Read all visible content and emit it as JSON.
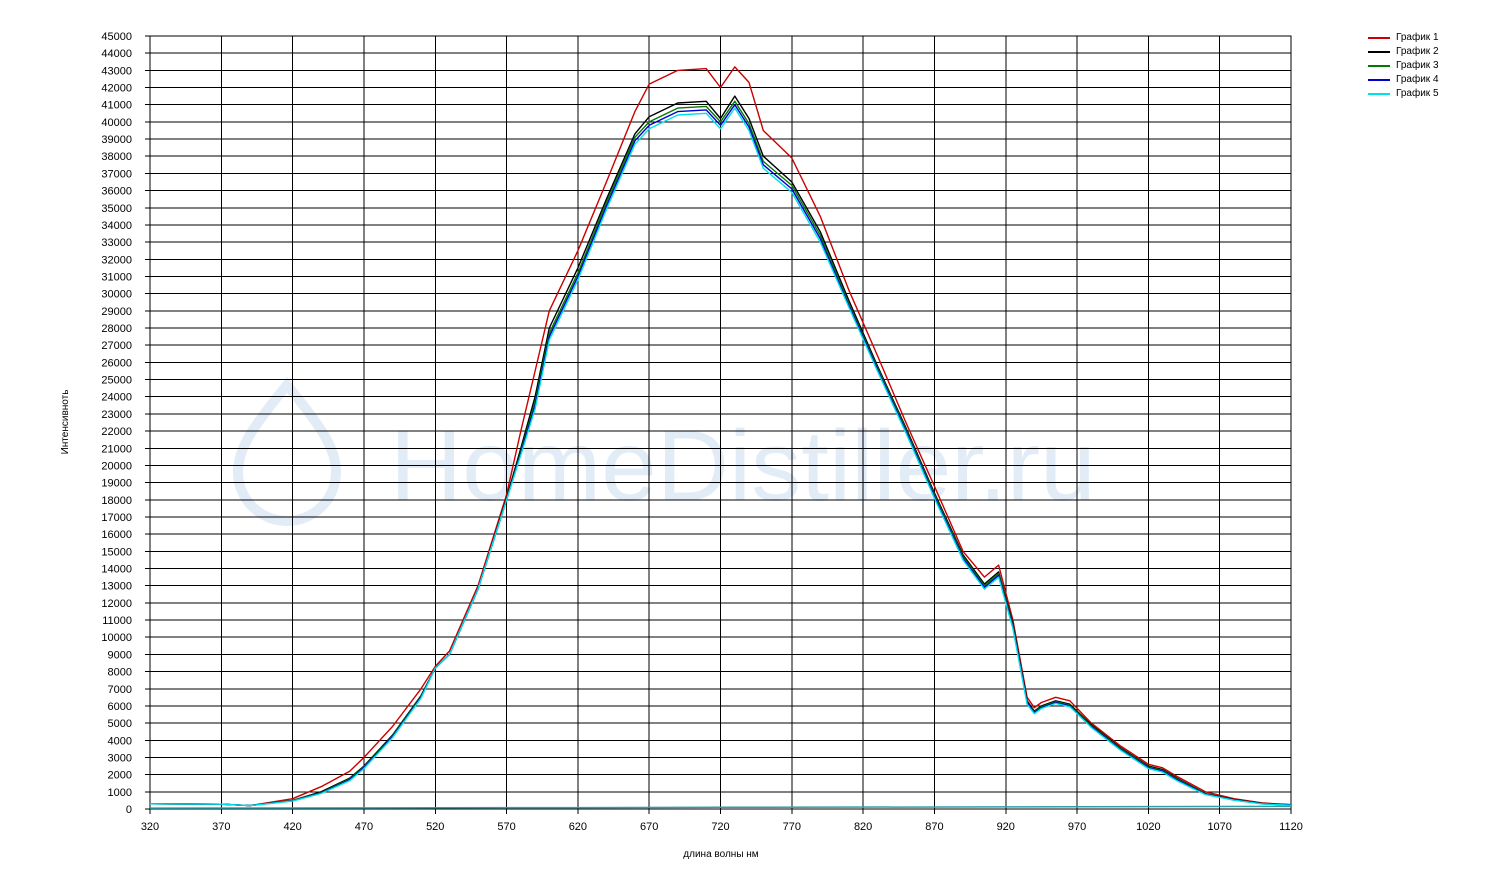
{
  "chart_data": {
    "type": "line",
    "title": "",
    "xlabel": "длина волны нм",
    "ylabel": "Интенсивноть",
    "watermark": "HomeDistiller.ru",
    "xlim": [
      320,
      1120
    ],
    "ylim": [
      0,
      45000
    ],
    "x_ticks": [
      "320",
      "370",
      "420",
      "470",
      "520",
      "570",
      "620",
      "670",
      "720",
      "770",
      "820",
      "870",
      "920",
      "970",
      "1020",
      "1070",
      "1120"
    ],
    "y_ticks": [
      "0",
      "1000",
      "2000",
      "3000",
      "4000",
      "5000",
      "6000",
      "7000",
      "8000",
      "9000",
      "10000",
      "11000",
      "12000",
      "13000",
      "14000",
      "15000",
      "16000",
      "17000",
      "18000",
      "19000",
      "20000",
      "21000",
      "22000",
      "23000",
      "24000",
      "25000",
      "26000",
      "27000",
      "28000",
      "29000",
      "30000",
      "31000",
      "32000",
      "33000",
      "34000",
      "35000",
      "36000",
      "37000",
      "38000",
      "39000",
      "40000",
      "41000",
      "42000",
      "43000",
      "44000",
      "45000"
    ],
    "grid": true,
    "legend_position": "top-right",
    "x": [
      320,
      370,
      390,
      420,
      440,
      460,
      470,
      490,
      510,
      520,
      530,
      550,
      570,
      580,
      590,
      600,
      620,
      640,
      660,
      670,
      690,
      710,
      720,
      730,
      740,
      750,
      770,
      790,
      810,
      830,
      850,
      870,
      890,
      905,
      915,
      925,
      935,
      940,
      945,
      955,
      965,
      980,
      1000,
      1020,
      1030,
      1040,
      1060,
      1080,
      1100,
      1120
    ],
    "series": [
      {
        "name": "График 1",
        "color": "#cc0000",
        "values": [
          300,
          280,
          200,
          600,
          1300,
          2200,
          3000,
          4800,
          7000,
          8300,
          9200,
          13000,
          18300,
          22000,
          25500,
          29000,
          32500,
          36500,
          40600,
          42200,
          43000,
          43100,
          42000,
          43200,
          42300,
          39500,
          37900,
          34500,
          30200,
          26400,
          22500,
          18800,
          15000,
          13500,
          14200,
          11000,
          6500,
          5900,
          6200,
          6500,
          6300,
          5000,
          3700,
          2600,
          2400,
          1900,
          1000,
          600,
          350,
          250
        ]
      },
      {
        "name": "График 2",
        "color": "#000000",
        "values": [
          300,
          280,
          200,
          500,
          1000,
          1800,
          2500,
          4300,
          6600,
          8200,
          9000,
          12800,
          18100,
          21000,
          24000,
          28000,
          31500,
          35500,
          39300,
          40300,
          41100,
          41200,
          40200,
          41500,
          40200,
          38000,
          36500,
          33600,
          29600,
          25800,
          22200,
          18400,
          14800,
          13100,
          13800,
          10800,
          6300,
          5700,
          6000,
          6300,
          6100,
          4900,
          3600,
          2500,
          2300,
          1800,
          900,
          550,
          320,
          250
        ]
      },
      {
        "name": "График 3",
        "color": "#007a00",
        "values": [
          300,
          280,
          200,
          500,
          950,
          1750,
          2450,
          4250,
          6550,
          8200,
          9000,
          12800,
          18000,
          20800,
          23700,
          27700,
          31200,
          35300,
          39100,
          40000,
          40800,
          40900,
          40000,
          41200,
          39900,
          37700,
          36300,
          33400,
          29400,
          25700,
          22100,
          18300,
          14700,
          13000,
          13700,
          10700,
          6200,
          5650,
          5950,
          6250,
          6050,
          4850,
          3550,
          2450,
          2250,
          1750,
          880,
          530,
          310,
          240
        ]
      },
      {
        "name": "График 4",
        "color": "#0000cc",
        "values": [
          300,
          280,
          200,
          480,
          920,
          1700,
          2400,
          4200,
          6500,
          8200,
          9000,
          12800,
          18000,
          20700,
          23500,
          27500,
          31000,
          35100,
          38900,
          39800,
          40600,
          40700,
          39800,
          41000,
          39700,
          37500,
          36100,
          33200,
          29300,
          25600,
          22000,
          18200,
          14600,
          12900,
          13600,
          10600,
          6200,
          5600,
          5900,
          6200,
          6000,
          4800,
          3500,
          2400,
          2200,
          1700,
          860,
          520,
          300,
          230
        ]
      },
      {
        "name": "График 5",
        "color": "#00e0e8",
        "values": [
          300,
          280,
          200,
          460,
          900,
          1650,
          2350,
          4150,
          6450,
          8200,
          9000,
          12800,
          18000,
          20600,
          23300,
          27300,
          30800,
          34900,
          38700,
          39600,
          40400,
          40500,
          39600,
          40800,
          39500,
          37300,
          35900,
          33000,
          29200,
          25500,
          21900,
          18100,
          14500,
          12800,
          13500,
          10500,
          6100,
          5550,
          5850,
          6150,
          5950,
          4750,
          3450,
          2350,
          2150,
          1650,
          840,
          510,
          290,
          220
        ]
      }
    ],
    "baseline": {
      "color": "#2f9fa8",
      "x": [
        320,
        620,
        720,
        920,
        1120
      ],
      "values": [
        50,
        80,
        100,
        120,
        150
      ]
    }
  }
}
